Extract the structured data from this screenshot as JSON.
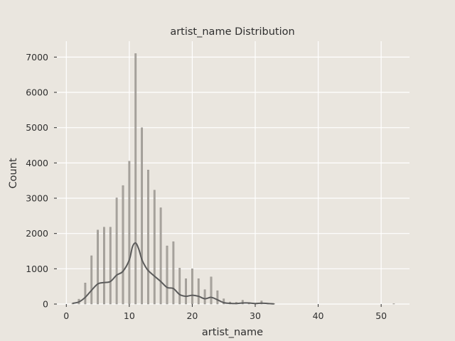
{
  "chart_data": {
    "type": "bar",
    "title": "artist_name Distribution",
    "xlabel": "artist_name",
    "ylabel": "Count",
    "xlim": [
      -1.5,
      54.5
    ],
    "ylim": [
      0,
      7450
    ],
    "x_ticks": [
      0,
      10,
      20,
      30,
      40,
      50
    ],
    "y_ticks": [
      0,
      1000,
      2000,
      3000,
      4000,
      5000,
      6000,
      7000
    ],
    "grid": true,
    "series": [
      {
        "kind": "histogram",
        "x": [
          1,
          2,
          3,
          4,
          5,
          6,
          7,
          8,
          9,
          10,
          11,
          12,
          13,
          14,
          15,
          16,
          17,
          18,
          19,
          20,
          21,
          22,
          23,
          24,
          25,
          26,
          27,
          28,
          29,
          30,
          31,
          32,
          33,
          52
        ],
        "values": [
          30,
          140,
          600,
          1370,
          2100,
          2180,
          2180,
          3010,
          3360,
          4050,
          7100,
          5000,
          3800,
          3230,
          2730,
          1650,
          1770,
          1020,
          720,
          1000,
          720,
          410,
          770,
          380,
          150,
          60,
          50,
          110,
          40,
          20,
          90,
          20,
          10,
          10
        ]
      },
      {
        "kind": "kde",
        "x": [
          1,
          2,
          3,
          4,
          5,
          6,
          7,
          8,
          9,
          10,
          10.5,
          11,
          11.5,
          12,
          12.5,
          13,
          14,
          15,
          16,
          17,
          18,
          19,
          20,
          21,
          22,
          23,
          24,
          25,
          26,
          27,
          28,
          29,
          30,
          31,
          32,
          33
        ],
        "values": [
          20,
          60,
          190,
          390,
          570,
          610,
          640,
          820,
          930,
          1250,
          1620,
          1730,
          1560,
          1260,
          1080,
          950,
          790,
          640,
          470,
          440,
          270,
          220,
          250,
          220,
          150,
          190,
          120,
          40,
          20,
          15,
          30,
          30,
          15,
          25,
          15,
          5
        ]
      }
    ],
    "colors": {
      "background": "#eae6df",
      "grid": "#ffffff",
      "bar": "#a7a39d",
      "bar_edge": "#8f8b85",
      "kde": "#5b5b5b",
      "text": "#2f2f2f"
    }
  }
}
